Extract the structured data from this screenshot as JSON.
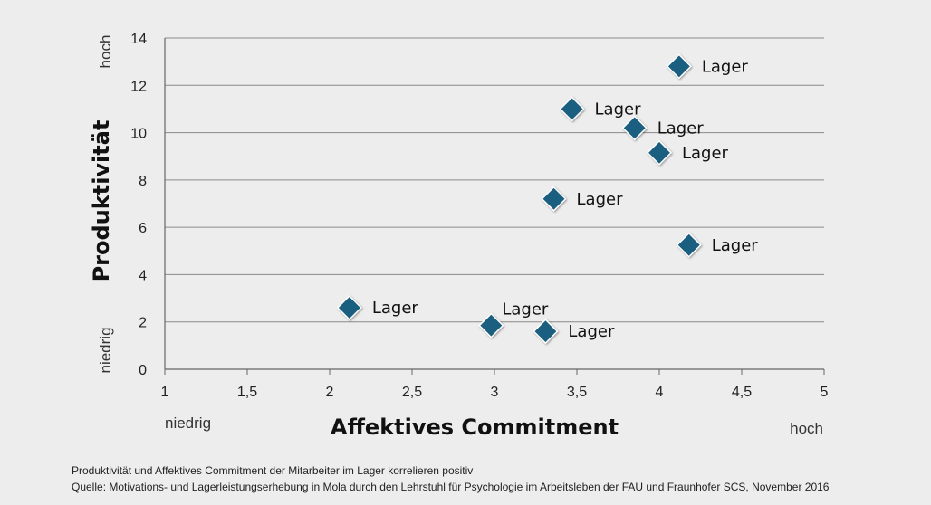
{
  "chart_data": {
    "type": "scatter",
    "xlabel": "Affektives Commitment",
    "ylabel": "Produktivität",
    "x_low_label": "niedrig",
    "x_high_label": "hoch",
    "y_low_label": "niedrig",
    "y_high_label": "hoch",
    "xlim": [
      1,
      5
    ],
    "ylim": [
      0,
      14
    ],
    "x_ticks": [
      "1",
      "1,5",
      "2",
      "2,5",
      "3",
      "3,5",
      "4",
      "4,5",
      "5"
    ],
    "y_ticks": [
      "0",
      "2",
      "4",
      "6",
      "8",
      "10",
      "12",
      "14"
    ],
    "grid": "horizontal",
    "marker_color": "#1a5f7f",
    "points": [
      {
        "x": 2.12,
        "y": 2.6,
        "label": "Lager"
      },
      {
        "x": 2.98,
        "y": 1.85,
        "label": "Lager"
      },
      {
        "x": 3.31,
        "y": 1.6,
        "label": "Lager"
      },
      {
        "x": 3.36,
        "y": 7.2,
        "label": "Lager"
      },
      {
        "x": 3.47,
        "y": 11.0,
        "label": "Lager"
      },
      {
        "x": 3.85,
        "y": 10.2,
        "label": "Lager"
      },
      {
        "x": 4.0,
        "y": 9.15,
        "label": "Lager"
      },
      {
        "x": 4.12,
        "y": 12.8,
        "label": "Lager"
      },
      {
        "x": 4.18,
        "y": 5.25,
        "label": "Lager"
      }
    ]
  },
  "footer": {
    "caption": "Produktivität und Affektives Commitment der Mitarbeiter im Lager korrelieren positiv",
    "source": "Quelle: Motivations- und Lagerleistungserhebung in Mola durch den Lehrstuhl für Psychologie im Arbeitsleben der FAU und Fraunhofer SCS, November 2016"
  }
}
